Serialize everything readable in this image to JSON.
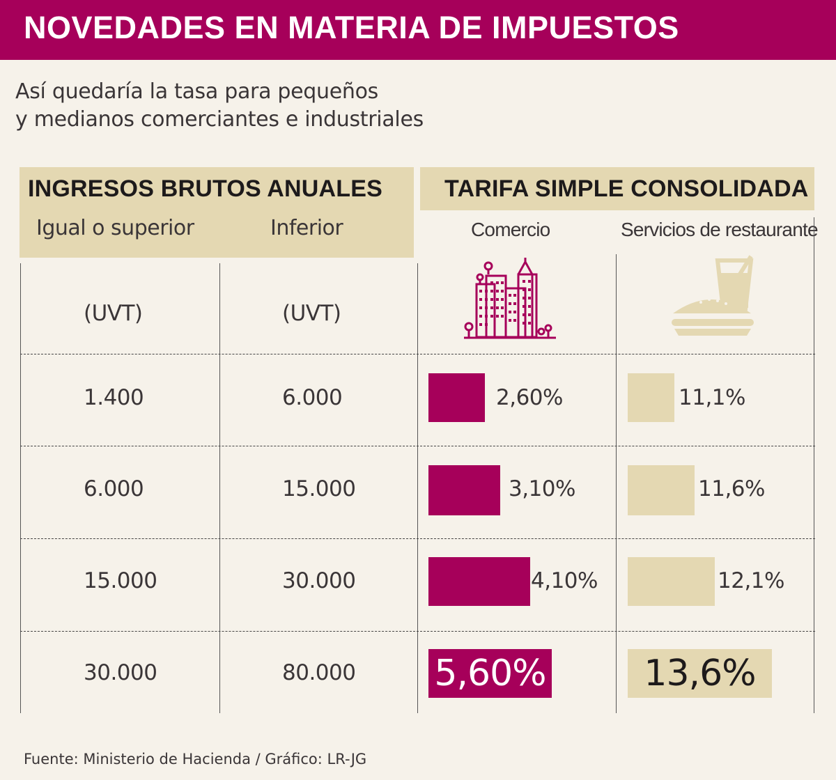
{
  "header": {
    "title": "NOVEDADES EN MATERIA DE IMPUESTOS"
  },
  "subtitle": {
    "line1": "Así quedaría la tasa para pequeños",
    "line2": "y medianos comerciantes e industriales"
  },
  "left_group": {
    "title": "INGRESOS BRUTOS ANUALES",
    "col1": "Igual o superior",
    "col2": "Inferior",
    "unit1": "(UVT)",
    "unit2": "(UVT)"
  },
  "right_group": {
    "title": "TARIFA SIMPLE CONSOLIDADA",
    "col1": "Comercio",
    "col2": "Servicios de restaurante"
  },
  "colors": {
    "magenta": "#a6005a",
    "beige": "#e4d8b2",
    "background": "#f6f2ea"
  },
  "icons": {
    "comercio": "city-buildings-icon",
    "restaurante": "burger-drink-icon"
  },
  "chart_data": {
    "type": "table",
    "title": "NOVEDADES EN MATERIA DE IMPUESTOS",
    "subtitle": "Así quedaría la tasa para pequeños y medianos comerciantes e industriales",
    "columns": [
      "Igual o superior (UVT)",
      "Inferior (UVT)",
      "Comercio",
      "Servicios de restaurante"
    ],
    "rows": [
      {
        "desde": "1.400",
        "hasta": "6.000",
        "comercio": "2,60%",
        "comercio_value": 2.6,
        "restaurante": "11,1%",
        "restaurante_value": 11.1
      },
      {
        "desde": "6.000",
        "hasta": "15.000",
        "comercio": "3,10%",
        "comercio_value": 3.1,
        "restaurante": "11,6%",
        "restaurante_value": 11.6
      },
      {
        "desde": "15.000",
        "hasta": "30.000",
        "comercio": "4,10%",
        "comercio_value": 4.1,
        "restaurante": "12,1%",
        "restaurante_value": 12.1
      },
      {
        "desde": "30.000",
        "hasta": "80.000",
        "comercio": "5,60%",
        "comercio_value": 5.6,
        "restaurante": "13,6%",
        "restaurante_value": 13.6
      }
    ]
  },
  "source": "Fuente: Ministerio de Hacienda / Gráfico: LR-JG"
}
